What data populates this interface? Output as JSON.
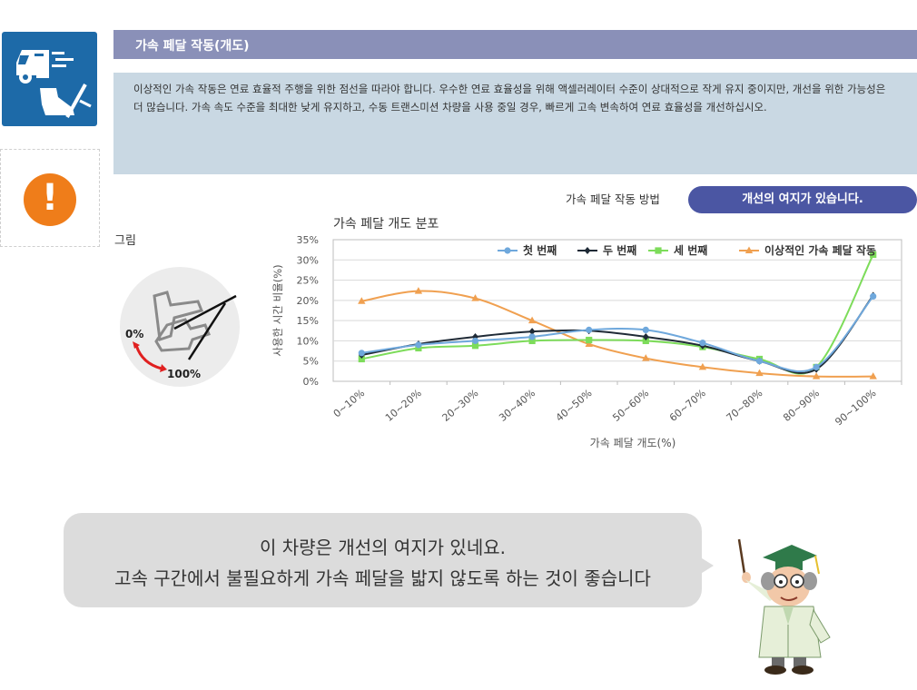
{
  "header": {
    "title": "가속 페달 작동(개도)",
    "description": "이상적인 가속 작동은 연료 효율적 주행을 위한 점선을 따라야 합니다. 우수한 연료 효율성을 위해 액셀러레이터 수준이 상대적으로 작게 유지 중이지만, 개선을 위한 가능성은 더 많습니다. 가속 속도 수준을 최대한 낮게 유지하고, 수동 트랜스미션 차량을 사용 중일 경우, 빠르게 고속 변속하여 연료 효율성을 개선하십시오."
  },
  "sidebar": {
    "truck_icon": "truck-accelerator-icon",
    "alert_icon": "exclamation-icon",
    "alert_color": "#ef7d1a",
    "tile_color": "#1d6aa8"
  },
  "method": {
    "label": "가속 페달 작동 방법",
    "badge": "개선의 여지가 있습니다."
  },
  "figure": {
    "label": "그림",
    "min_label": "0%",
    "max_label": "100%"
  },
  "chart_data": {
    "type": "line",
    "title": "가속 페달 개도 분포",
    "xlabel": "가속 페달 개도(%)",
    "ylabel": "사용한 시간 비율(%)",
    "ylim": [
      0,
      35
    ],
    "yticks": [
      "0%",
      "5%",
      "10%",
      "15%",
      "20%",
      "25%",
      "30%",
      "35%"
    ],
    "categories": [
      "0~10%",
      "10~20%",
      "20~30%",
      "30~40%",
      "40~50%",
      "50~60%",
      "60~70%",
      "70~80%",
      "80~90%",
      "90~100%"
    ],
    "grid": true,
    "legend": "top",
    "series": [
      {
        "name": "첫 번째",
        "color": "#6fa8dc",
        "marker": "circle",
        "values": [
          7,
          9,
          10,
          11,
          12.7,
          12.7,
          9.5,
          5,
          3.5,
          21
        ]
      },
      {
        "name": "두 번째",
        "color": "#1f2a36",
        "marker": "diamond",
        "values": [
          6.5,
          9.2,
          11,
          12.3,
          12.5,
          11,
          8.8,
          5,
          3,
          21.2
        ]
      },
      {
        "name": "세 번째",
        "color": "#7ddc5a",
        "marker": "square",
        "values": [
          5.5,
          8.2,
          8.8,
          10,
          10.2,
          10,
          8.5,
          5.5,
          3.5,
          31.3
        ]
      },
      {
        "name": "이상적인 가속 페달 작동",
        "color": "#f0a050",
        "marker": "triangle",
        "values": [
          19.8,
          22.3,
          20.5,
          15,
          9.2,
          5.7,
          3.5,
          2,
          1.2,
          1.2
        ]
      }
    ]
  },
  "speech": {
    "line1": "이 차량은 개선의 여지가 있네요.",
    "line2": "고속 구간에서 불필요하게 가속 페달을 밟지 않도록 하는 것이 좋습니다"
  }
}
